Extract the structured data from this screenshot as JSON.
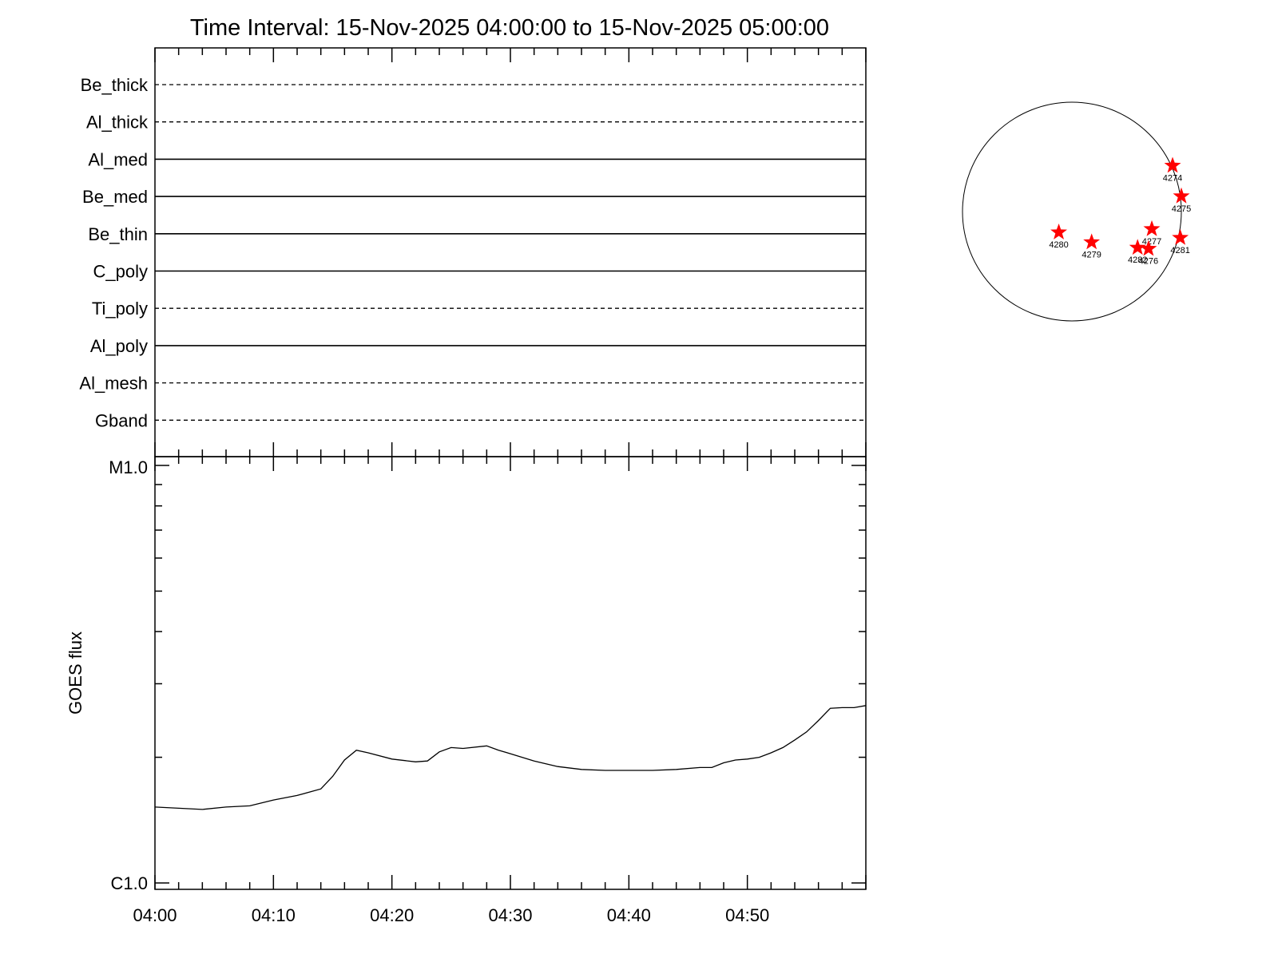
{
  "title": "Time Interval: 15-Nov-2025 04:00:00 to 15-Nov-2025 05:00:00",
  "chart_data": [
    {
      "type": "line",
      "panel": "filter-timeline",
      "categories": [
        "Be_thick",
        "Al_thick",
        "Al_med",
        "Be_med",
        "Be_thin",
        "C_poly",
        "Ti_poly",
        "Al_poly",
        "Al_mesh",
        "Gband"
      ],
      "line_styles": [
        "dashed",
        "dashed",
        "solid",
        "solid",
        "solid",
        "solid",
        "dashed",
        "solid",
        "dashed",
        "dashed"
      ],
      "x_range": [
        "04:00",
        "05:00"
      ]
    },
    {
      "type": "line",
      "panel": "goes-flux",
      "ylabel": "GOES flux",
      "yscale": "log",
      "ylim_labels": [
        "C1.0",
        "M1.0"
      ],
      "ylim": [
        1e-06,
        1e-05
      ],
      "xticks": [
        "04:00",
        "04:10",
        "04:20",
        "04:30",
        "04:40",
        "04:50"
      ],
      "x_minutes": [
        0,
        2,
        4,
        6,
        8,
        10,
        12,
        14,
        15,
        16,
        17,
        18,
        20,
        22,
        23,
        24,
        25,
        26,
        28,
        29,
        30,
        32,
        34,
        36,
        38,
        40,
        42,
        44,
        46,
        47,
        48,
        49,
        50,
        51,
        52,
        53,
        54,
        55,
        56,
        57,
        58,
        59,
        60
      ],
      "y": [
        1.52e-06,
        1.51e-06,
        1.5e-06,
        1.52e-06,
        1.53e-06,
        1.58e-06,
        1.62e-06,
        1.68e-06,
        1.8e-06,
        1.97e-06,
        2.08e-06,
        2.05e-06,
        1.98e-06,
        1.95e-06,
        1.96e-06,
        2.06e-06,
        2.11e-06,
        2.1e-06,
        2.13e-06,
        2.08e-06,
        2.04e-06,
        1.96e-06,
        1.9e-06,
        1.87e-06,
        1.86e-06,
        1.86e-06,
        1.86e-06,
        1.87e-06,
        1.89e-06,
        1.89e-06,
        1.94e-06,
        1.97e-06,
        1.98e-06,
        2e-06,
        2.05e-06,
        2.11e-06,
        2.2e-06,
        2.3e-06,
        2.45e-06,
        2.62e-06,
        2.63e-06,
        2.63e-06,
        2.66e-06
      ],
      "grid": false
    },
    {
      "type": "scatter",
      "panel": "solar-disk",
      "marker_color": "#ff0000",
      "points": [
        {
          "label": "4274",
          "x": 0.92,
          "y": 0.42
        },
        {
          "label": "4275",
          "x": 1.0,
          "y": 0.14
        },
        {
          "label": "4277",
          "x": 0.73,
          "y": -0.16
        },
        {
          "label": "4280",
          "x": -0.12,
          "y": -0.19
        },
        {
          "label": "4279",
          "x": 0.18,
          "y": -0.28
        },
        {
          "label": "4281",
          "x": 0.99,
          "y": -0.24
        },
        {
          "label": "4282",
          "x": 0.6,
          "y": -0.33
        },
        {
          "label": "4276",
          "x": 0.7,
          "y": -0.34
        }
      ]
    }
  ]
}
